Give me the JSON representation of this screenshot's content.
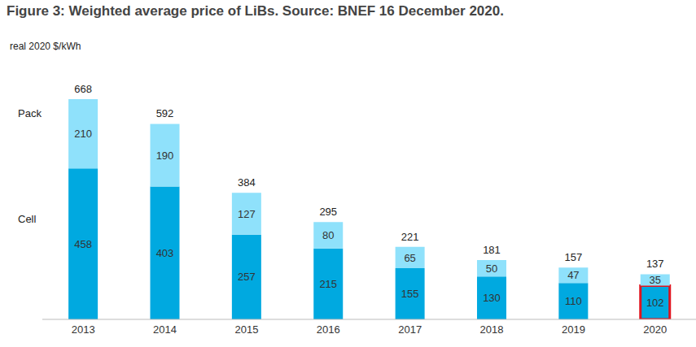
{
  "chart_data": {
    "type": "bar",
    "title": "Figure 3: Weighted average price of LiBs. Source: BNEF 16 December 2020.",
    "y_label": "real 2020 $/kWh",
    "categories": [
      "2013",
      "2014",
      "2015",
      "2016",
      "2017",
      "2018",
      "2019",
      "2020"
    ],
    "series": [
      {
        "name": "Cell",
        "color": "#00a9e0",
        "values": [
          458,
          403,
          257,
          215,
          155,
          130,
          110,
          102
        ]
      },
      {
        "name": "Pack",
        "color": "#8fe1fb",
        "values": [
          210,
          190,
          127,
          80,
          65,
          50,
          47,
          35
        ]
      }
    ],
    "totals": [
      668,
      592,
      384,
      295,
      221,
      181,
      157,
      137
    ],
    "stacked": true,
    "data_labels": true,
    "tick_labels": "x",
    "grid": false,
    "ylim": [
      0,
      668
    ],
    "yticks": []
  }
}
